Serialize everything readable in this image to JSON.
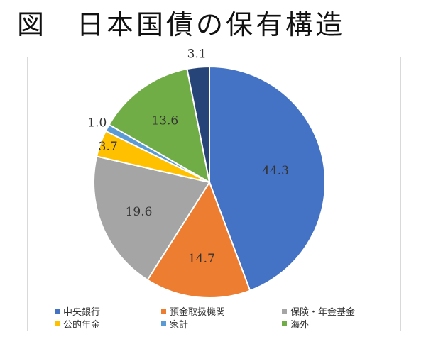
{
  "page": {
    "title": "図　日本国債の保有構造"
  },
  "chart_data": {
    "type": "pie",
    "title": "",
    "start_angle_deg": 0,
    "direction": "clockwise",
    "slices": [
      {
        "name": "中央銀行",
        "value": 44.3,
        "label": "44.3",
        "color": "#4472c4"
      },
      {
        "name": "預金取扱機関",
        "value": 14.7,
        "label": "14.7",
        "color": "#ed7d31"
      },
      {
        "name": "保険・年金基金",
        "value": 19.6,
        "label": "19.6",
        "color": "#a5a5a5"
      },
      {
        "name": "公的年金",
        "value": 3.7,
        "label": "3.7",
        "color": "#ffc000"
      },
      {
        "name": "家計",
        "value": 1.0,
        "label": "1.0",
        "color": "#5b9bd5"
      },
      {
        "name": "海外",
        "value": 13.6,
        "label": "13.6",
        "color": "#70ad47"
      },
      {
        "name": "",
        "value": 3.1,
        "label": "3.1",
        "color": "#264478"
      }
    ],
    "legend": {
      "position": "bottom",
      "entries": [
        {
          "label": "中央銀行",
          "color": "#4472c4"
        },
        {
          "label": "預金取扱機関",
          "color": "#ed7d31"
        },
        {
          "label": "保険・年金基金",
          "color": "#a5a5a5"
        },
        {
          "label": "公的年金",
          "color": "#ffc000"
        },
        {
          "label": "家計",
          "color": "#5b9bd5"
        },
        {
          "label": "海外",
          "color": "#70ad47"
        }
      ]
    }
  }
}
